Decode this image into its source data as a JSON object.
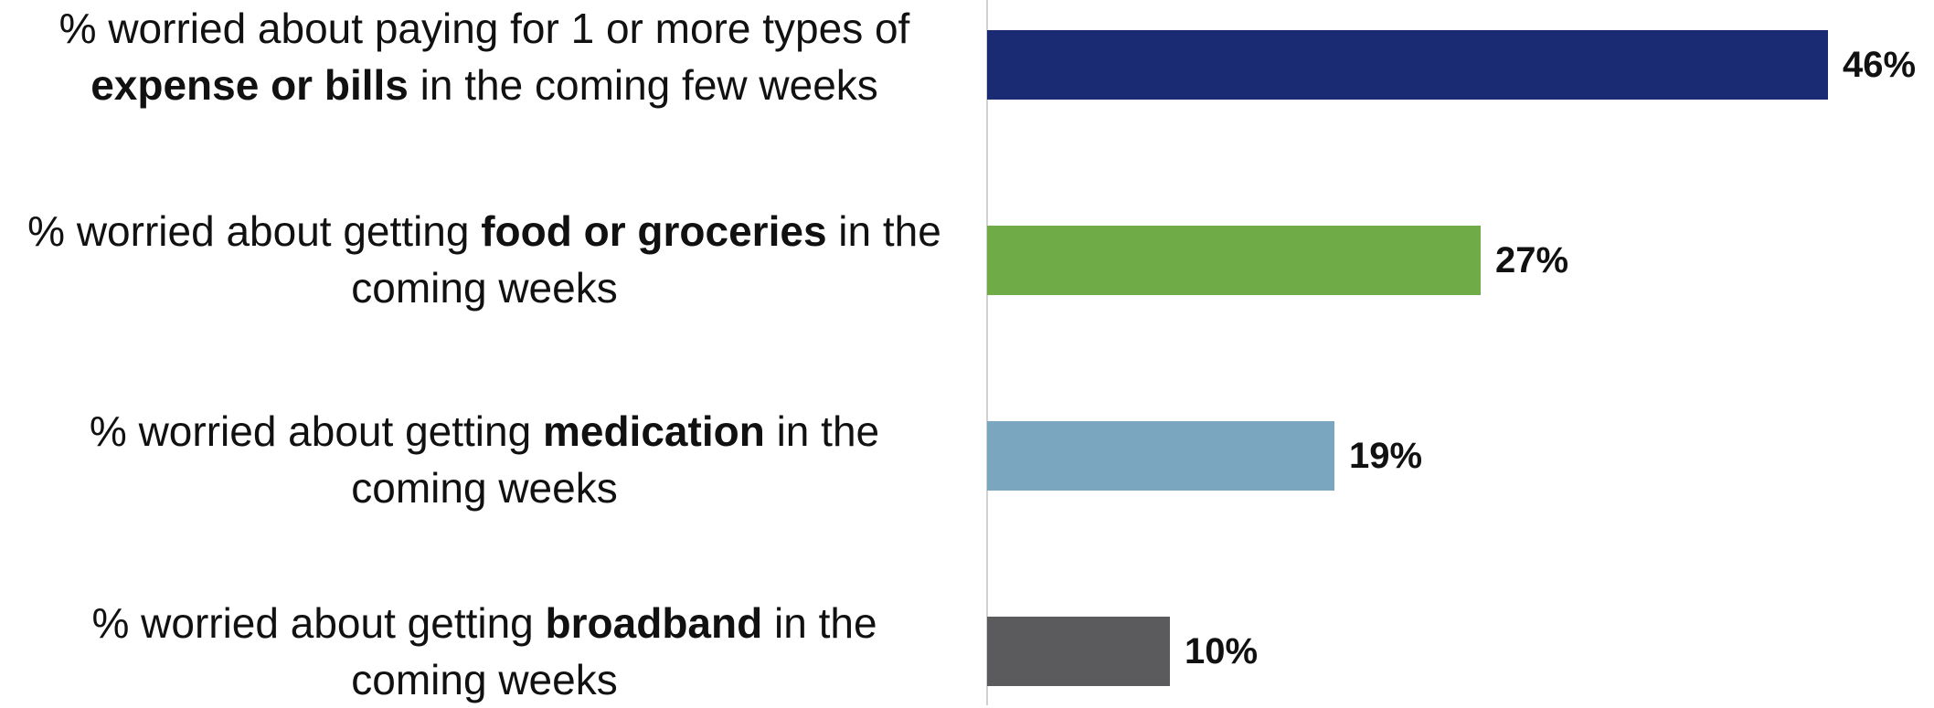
{
  "chart_data": {
    "type": "bar",
    "orientation": "horizontal",
    "categories": [
      "% worried about paying for 1 or more types of expense or bills in the coming few weeks",
      "% worried about getting food or groceries in the coming weeks",
      "% worried about getting medication in the coming weeks",
      "% worried about getting broadband in the coming weeks"
    ],
    "category_parts": [
      [
        {
          "t": "% worried about paying for 1 or more types of ",
          "b": false
        },
        {
          "t": "expense or bills",
          "b": true
        },
        {
          "t": " in the coming few weeks",
          "b": false
        }
      ],
      [
        {
          "t": "% worried about getting ",
          "b": false
        },
        {
          "t": "food or groceries",
          "b": true
        },
        {
          "t": " in the coming weeks",
          "b": false
        }
      ],
      [
        {
          "t": "% worried about getting ",
          "b": false
        },
        {
          "t": "medication",
          "b": true
        },
        {
          "t": " in the coming weeks",
          "b": false
        }
      ],
      [
        {
          "t": "% worried about getting ",
          "b": false
        },
        {
          "t": "broadband",
          "b": true
        },
        {
          "t": " in the coming weeks",
          "b": false
        }
      ]
    ],
    "values": [
      46,
      27,
      19,
      10
    ],
    "value_labels": [
      "46%",
      "27%",
      "19%",
      "10%"
    ],
    "colors": [
      "#1b2b73",
      "#6fac48",
      "#7aa6bf",
      "#5b5b5d"
    ],
    "xlim": [
      0,
      50
    ],
    "grid": false,
    "legend": "none"
  }
}
